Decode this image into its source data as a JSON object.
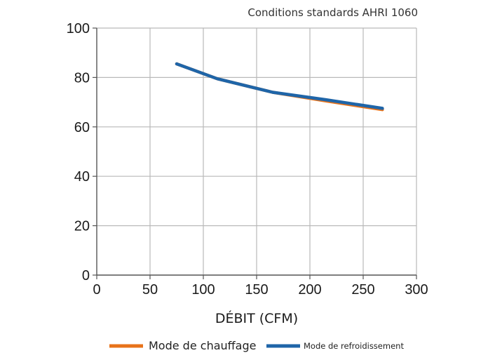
{
  "chart_data": {
    "type": "line",
    "title": "Conditions standards AHRI 1060",
    "xlabel": "DÉBIT (CFM)",
    "ylabel": "",
    "xlim": [
      0,
      300
    ],
    "ylim": [
      0,
      100
    ],
    "x_ticks": [
      "0",
      "50",
      "100",
      "150",
      "200",
      "250",
      "300"
    ],
    "y_ticks": [
      "0",
      "20",
      "40",
      "60",
      "80",
      "100"
    ],
    "grid": true,
    "legend_position": "bottom",
    "series": [
      {
        "name": "Mode de chauffage",
        "color": "#e8731a",
        "x": [
          75,
          113,
          165,
          215,
          268
        ],
        "y": [
          85.5,
          79.5,
          74,
          70.5,
          67
        ]
      },
      {
        "name": "Mode de refroidissement",
        "color": "#1f65a8",
        "x": [
          75,
          113,
          165,
          215,
          268
        ],
        "y": [
          85.5,
          79.5,
          74,
          71,
          67.5
        ]
      }
    ]
  }
}
